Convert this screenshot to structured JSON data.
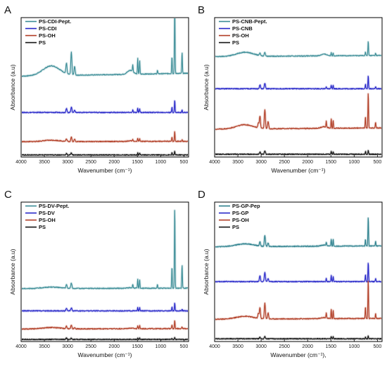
{
  "panels": [
    {
      "letter": "A",
      "xlabel": "Wavenumber (cm⁻¹)"
    },
    {
      "letter": "B",
      "xlabel": "Wavenumber (cm⁻¹)"
    },
    {
      "letter": "C",
      "xlabel": "Wavenumber (cm⁻¹)"
    },
    {
      "letter": "D",
      "xlabel": "Wavenumber (cm⁻¹),"
    }
  ],
  "chart_data": [
    {
      "type": "line",
      "panel": "A",
      "ylabel": "Absorbance (a.u)",
      "xlabel": "Wavenumber (cm⁻¹)",
      "xlim": [
        4000,
        400
      ],
      "xaxis_reversed": true,
      "x_ticks": [
        4000,
        3500,
        3000,
        2500,
        2000,
        1500,
        1000,
        500
      ],
      "y_ticks_shown": false,
      "legend_position": "top-left",
      "series": [
        {
          "name": "PS-CDI-Pept.",
          "color": "#3a8c96",
          "baseline": 0.58,
          "scale": 1.25,
          "broad": 0.07,
          "peaks": [
            [
              3026,
              0.06
            ],
            [
              2920,
              0.13
            ],
            [
              2850,
              0.05
            ],
            [
              1600,
              0.04
            ],
            [
              1493,
              0.09
            ],
            [
              1452,
              0.08
            ],
            [
              1070,
              0.02
            ],
            [
              757,
              0.1
            ],
            [
              698,
              0.4
            ],
            [
              540,
              0.12
            ]
          ]
        },
        {
          "name": "PS-CDI",
          "color": "#2424c8",
          "baseline": 0.32,
          "scale": 0.55,
          "broad": 0.0,
          "peaks": [
            [
              3026,
              0.05
            ],
            [
              2920,
              0.07
            ],
            [
              2850,
              0.03
            ],
            [
              1600,
              0.03
            ],
            [
              1493,
              0.06
            ],
            [
              1452,
              0.05
            ],
            [
              757,
              0.07
            ],
            [
              698,
              0.16
            ],
            [
              540,
              0.03
            ]
          ]
        },
        {
          "name": "PS-OH",
          "color": "#b03a22",
          "baseline": 0.11,
          "scale": 0.55,
          "broad": 0.01,
          "peaks": [
            [
              3026,
              0.03
            ],
            [
              2920,
              0.06
            ],
            [
              2850,
              0.03
            ],
            [
              1600,
              0.02
            ],
            [
              1493,
              0.04
            ],
            [
              1452,
              0.04
            ],
            [
              757,
              0.06
            ],
            [
              698,
              0.13
            ],
            [
              540,
              0.02
            ]
          ]
        },
        {
          "name": "PS",
          "color": "#111111",
          "baseline": 0.015,
          "scale": 0.5,
          "broad": 0.0,
          "peaks": [
            [
              3026,
              0.02
            ],
            [
              2920,
              0.03
            ],
            [
              1493,
              0.03
            ],
            [
              1452,
              0.03
            ],
            [
              757,
              0.03
            ],
            [
              698,
              0.05
            ]
          ]
        }
      ]
    },
    {
      "type": "line",
      "panel": "B",
      "ylabel": "Absorbance (a.u)",
      "xlabel": "Wavenumber (cm⁻¹)",
      "xlim": [
        4000,
        400
      ],
      "xaxis_reversed": true,
      "x_ticks": [
        4000,
        3500,
        3000,
        2500,
        2000,
        1500,
        1000,
        500
      ],
      "y_ticks_shown": false,
      "legend_position": "top-left",
      "series": [
        {
          "name": "PS-CNB-Pept.",
          "color": "#3a8c96",
          "baseline": 0.72,
          "scale": 0.55,
          "broad": 0.03,
          "peaks": [
            [
              3026,
              0.03
            ],
            [
              2920,
              0.05
            ],
            [
              1493,
              0.04
            ],
            [
              1452,
              0.04
            ],
            [
              757,
              0.05
            ],
            [
              698,
              0.19
            ],
            [
              540,
              0.03
            ]
          ]
        },
        {
          "name": "PS-CNB",
          "color": "#2424c8",
          "baseline": 0.49,
          "scale": 0.55,
          "broad": 0.0,
          "peaks": [
            [
              3026,
              0.05
            ],
            [
              2920,
              0.07
            ],
            [
              1600,
              0.02
            ],
            [
              1493,
              0.05
            ],
            [
              1452,
              0.05
            ],
            [
              757,
              0.06
            ],
            [
              698,
              0.17
            ],
            [
              540,
              0.03
            ]
          ]
        },
        {
          "name": "PS-OH",
          "color": "#b03a22",
          "baseline": 0.2,
          "scale": 0.85,
          "broad": 0.03,
          "peaks": [
            [
              3060,
              0.04
            ],
            [
              3026,
              0.1
            ],
            [
              2920,
              0.16
            ],
            [
              2850,
              0.06
            ],
            [
              1600,
              0.05
            ],
            [
              1493,
              0.08
            ],
            [
              1452,
              0.07
            ],
            [
              757,
              0.1
            ],
            [
              698,
              0.3
            ],
            [
              540,
              0.05
            ]
          ]
        },
        {
          "name": "PS",
          "color": "#111111",
          "baseline": 0.02,
          "scale": 0.5,
          "broad": 0.0,
          "peaks": [
            [
              3026,
              0.03
            ],
            [
              2920,
              0.05
            ],
            [
              1493,
              0.04
            ],
            [
              1452,
              0.04
            ],
            [
              757,
              0.04
            ],
            [
              698,
              0.06
            ]
          ]
        }
      ]
    },
    {
      "type": "line",
      "panel": "C",
      "ylabel": "Absorbance (a.u)",
      "xlabel": "Wavenumber (cm⁻¹)",
      "xlim": [
        4000,
        400
      ],
      "xaxis_reversed": true,
      "x_ticks": [
        4000,
        3500,
        3000,
        2500,
        2000,
        1500,
        1000,
        500
      ],
      "y_ticks_shown": false,
      "legend_position": "top-left",
      "series": [
        {
          "name": "PS-DV-Pept.",
          "color": "#3a8c96",
          "baseline": 0.38,
          "scale": 1.3,
          "broad": 0.01,
          "peaks": [
            [
              3026,
              0.02
            ],
            [
              2920,
              0.03
            ],
            [
              1600,
              0.02
            ],
            [
              1493,
              0.05
            ],
            [
              1452,
              0.05
            ],
            [
              1070,
              0.02
            ],
            [
              757,
              0.12
            ],
            [
              698,
              0.45
            ],
            [
              540,
              0.13
            ]
          ]
        },
        {
          "name": "PS-DV",
          "color": "#2424c8",
          "baseline": 0.22,
          "scale": 0.55,
          "broad": 0.0,
          "peaks": [
            [
              3026,
              0.03
            ],
            [
              2920,
              0.04
            ],
            [
              1493,
              0.04
            ],
            [
              1452,
              0.04
            ],
            [
              757,
              0.05
            ],
            [
              698,
              0.1
            ],
            [
              540,
              0.02
            ]
          ]
        },
        {
          "name": "PS-OH",
          "color": "#b03a22",
          "baseline": 0.09,
          "scale": 0.55,
          "broad": 0.01,
          "peaks": [
            [
              3026,
              0.03
            ],
            [
              2920,
              0.05
            ],
            [
              2850,
              0.02
            ],
            [
              1493,
              0.04
            ],
            [
              1452,
              0.04
            ],
            [
              757,
              0.05
            ],
            [
              698,
              0.11
            ],
            [
              540,
              0.02
            ]
          ]
        },
        {
          "name": "PS",
          "color": "#111111",
          "baseline": 0.015,
          "scale": 0.5,
          "broad": 0.0,
          "peaks": [
            [
              3026,
              0.02
            ],
            [
              2920,
              0.02
            ],
            [
              1493,
              0.02
            ],
            [
              1452,
              0.02
            ],
            [
              757,
              0.02
            ],
            [
              698,
              0.03
            ]
          ]
        }
      ]
    },
    {
      "type": "line",
      "panel": "D",
      "ylabel": "Absorbance (a.u)",
      "xlabel": "Wavenumber (cm⁻¹),",
      "xlim": [
        4000,
        400
      ],
      "xaxis_reversed": true,
      "x_ticks": [
        4000,
        3500,
        3000,
        2500,
        2000,
        1500,
        1000,
        500
      ],
      "y_ticks_shown": false,
      "legend_position": "top-left",
      "series": [
        {
          "name": "PS-GP-Pep",
          "color": "#2a7f8c",
          "baseline": 0.68,
          "scale": 0.8,
          "broad": 0.02,
          "peaks": [
            [
              3026,
              0.04
            ],
            [
              2920,
              0.1
            ],
            [
              2850,
              0.03
            ],
            [
              1600,
              0.03
            ],
            [
              1493,
              0.06
            ],
            [
              1452,
              0.06
            ],
            [
              757,
              0.06
            ],
            [
              698,
              0.26
            ],
            [
              540,
              0.04
            ]
          ]
        },
        {
          "name": "PS-GP",
          "color": "#2424c8",
          "baseline": 0.43,
          "scale": 0.7,
          "broad": 0.0,
          "peaks": [
            [
              3026,
              0.06
            ],
            [
              2920,
              0.09
            ],
            [
              2850,
              0.03
            ],
            [
              1600,
              0.03
            ],
            [
              1493,
              0.06
            ],
            [
              1452,
              0.05
            ],
            [
              757,
              0.07
            ],
            [
              698,
              0.2
            ],
            [
              540,
              0.03
            ]
          ]
        },
        {
          "name": "PS-OH",
          "color": "#b03a22",
          "baseline": 0.16,
          "scale": 0.85,
          "broad": 0.02,
          "peaks": [
            [
              3060,
              0.04
            ],
            [
              3026,
              0.09
            ],
            [
              2920,
              0.13
            ],
            [
              2850,
              0.05
            ],
            [
              1600,
              0.04
            ],
            [
              1493,
              0.08
            ],
            [
              1452,
              0.07
            ],
            [
              757,
              0.1
            ],
            [
              698,
              0.33
            ],
            [
              540,
              0.04
            ]
          ]
        },
        {
          "name": "PS",
          "color": "#111111",
          "baseline": 0.02,
          "scale": 0.5,
          "broad": 0.0,
          "peaks": [
            [
              3026,
              0.02
            ],
            [
              2920,
              0.03
            ],
            [
              1493,
              0.03
            ],
            [
              1452,
              0.03
            ],
            [
              757,
              0.03
            ],
            [
              698,
              0.04
            ]
          ]
        }
      ]
    }
  ]
}
